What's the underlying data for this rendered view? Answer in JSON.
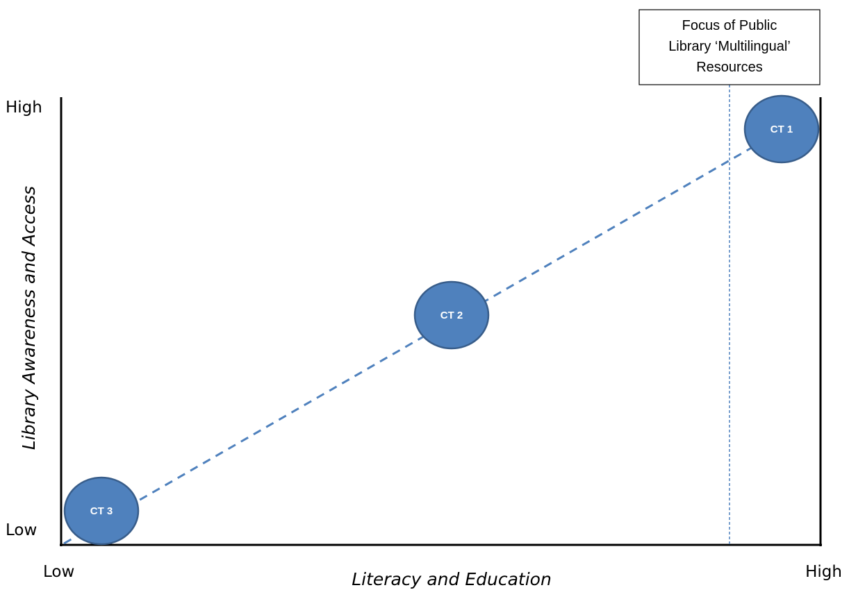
{
  "axes": {
    "x_title": "Literacy and Education",
    "y_title": "Library Awareness and Access",
    "x_low": "Low",
    "x_high": "High",
    "y_low": "Low",
    "y_high": "High"
  },
  "callout": {
    "lines": [
      "Focus of Public",
      "Library ‘Multilingual’",
      "Resources"
    ]
  },
  "nodes": [
    {
      "label": "CT 1"
    },
    {
      "label": "CT 2"
    },
    {
      "label": "CT 3"
    }
  ],
  "colors": {
    "node_fill": "#4f81bd",
    "node_stroke": "#385d8a",
    "line": "#4f81bd"
  }
}
